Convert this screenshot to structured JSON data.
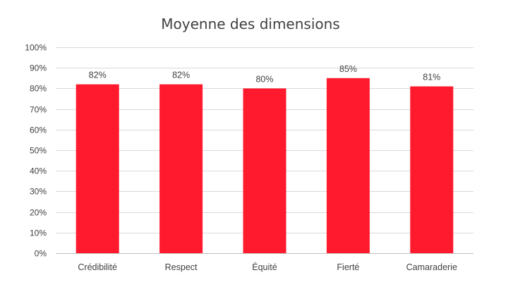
{
  "chart_data": {
    "type": "bar",
    "title": "Moyenne des dimensions",
    "xlabel": "",
    "ylabel": "",
    "categories": [
      "Crédibilité",
      "Respect",
      "Équité",
      "Fierté",
      "Camaraderie"
    ],
    "values": [
      0.82,
      0.82,
      0.8,
      0.85,
      0.81
    ],
    "data_labels": [
      "82%",
      "82%",
      "80%",
      "85%",
      "81%"
    ],
    "ylim": [
      0,
      1
    ],
    "yticks": [
      0,
      0.1,
      0.2,
      0.3,
      0.4,
      0.5,
      0.6,
      0.7,
      0.8,
      0.9,
      1.0
    ],
    "ytick_labels": [
      "0%",
      "10%",
      "20%",
      "30%",
      "40%",
      "50%",
      "60%",
      "70%",
      "80%",
      "90%",
      "100%"
    ],
    "grid": true,
    "legend": "none",
    "bar_color": "#ff1a2d"
  }
}
